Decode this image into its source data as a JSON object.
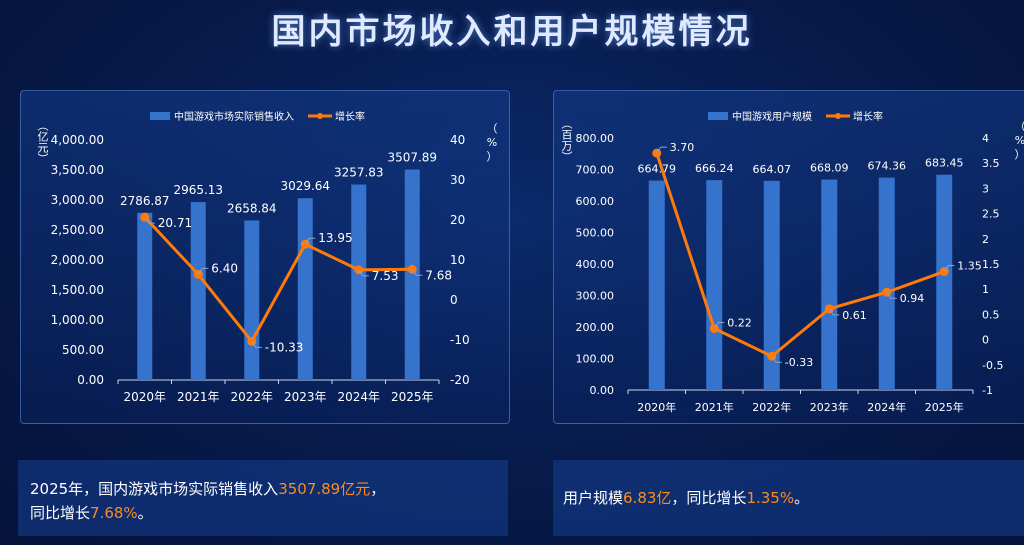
{
  "title": "国内市场收入和用户规模情况",
  "colors": {
    "bar": "#3573cc",
    "line": "#ff7a0a",
    "axis": "#c9d6f0",
    "text": "#ffffff"
  },
  "chart_data": [
    {
      "type": "bar+line",
      "categories": [
        "2020年",
        "2021年",
        "2022年",
        "2023年",
        "2024年",
        "2025年"
      ],
      "series": [
        {
          "name": "中国游戏市场实际销售收入",
          "type": "bar",
          "axis": "left",
          "values": [
            2786.87,
            2965.13,
            2658.84,
            3029.64,
            3257.83,
            3507.89
          ]
        },
        {
          "name": "增长率",
          "type": "line",
          "axis": "right",
          "values": [
            20.71,
            6.4,
            -10.33,
            13.95,
            7.53,
            7.68
          ]
        }
      ],
      "ylabel": "（亿元）",
      "y2label": "（%）",
      "ylim": [
        0,
        4000
      ],
      "y2lim": [
        -20,
        40
      ],
      "yticks": [
        "0.00",
        "500.00",
        "1,000.00",
        "1,500.00",
        "2,000.00",
        "2,500.00",
        "3,000.00",
        "3,500.00",
        "4,000.00"
      ],
      "y2ticks": [
        "-20",
        "-10",
        "0",
        "10",
        "20",
        "30",
        "40"
      ],
      "bar_labels": [
        "2786.87",
        "2965.13",
        "2658.84",
        "3029.64",
        "3257.83",
        "3507.89"
      ],
      "line_labels": [
        "20.71",
        "6.40",
        "-10.33",
        "13.95",
        "7.53",
        "7.68"
      ],
      "legend": "top-center"
    },
    {
      "type": "bar+line",
      "categories": [
        "2020年",
        "2021年",
        "2022年",
        "2023年",
        "2024年",
        "2025年"
      ],
      "series": [
        {
          "name": "中国游戏用户规模",
          "type": "bar",
          "axis": "left",
          "values": [
            664.79,
            666.24,
            664.07,
            668.09,
            674.36,
            683.45
          ]
        },
        {
          "name": "增长率",
          "type": "line",
          "axis": "right",
          "values": [
            3.7,
            0.22,
            -0.33,
            0.61,
            0.94,
            1.35
          ]
        }
      ],
      "ylabel": "（百万）",
      "y2label": "（%）",
      "ylim": [
        0,
        800
      ],
      "y2lim": [
        -1,
        4
      ],
      "yticks": [
        "0.00",
        "100.00",
        "200.00",
        "300.00",
        "400.00",
        "500.00",
        "600.00",
        "700.00",
        "800.00"
      ],
      "y2ticks": [
        "-1",
        "-0.5",
        "0",
        "0.5",
        "1",
        "1.5",
        "2",
        "2.5",
        "3",
        "3.5",
        "4"
      ],
      "bar_labels": [
        "664.79",
        "666.24",
        "664.07",
        "668.09",
        "674.36",
        "683.45"
      ],
      "line_labels": [
        "3.70",
        "0.22",
        "-0.33",
        "0.61",
        "0.94",
        "1.35"
      ],
      "legend": "top-center"
    }
  ],
  "notes": [
    {
      "a": "2025年，国内游戏市场实际销售收入",
      "b": "3507.89亿元",
      "c": "，",
      "d": "同比增长",
      "e": "7.68%",
      "f": "。"
    },
    {
      "a": "用户规模",
      "b": "6.83亿",
      "c": "，同比增长",
      "e": "1.35%",
      "f": "。"
    }
  ]
}
